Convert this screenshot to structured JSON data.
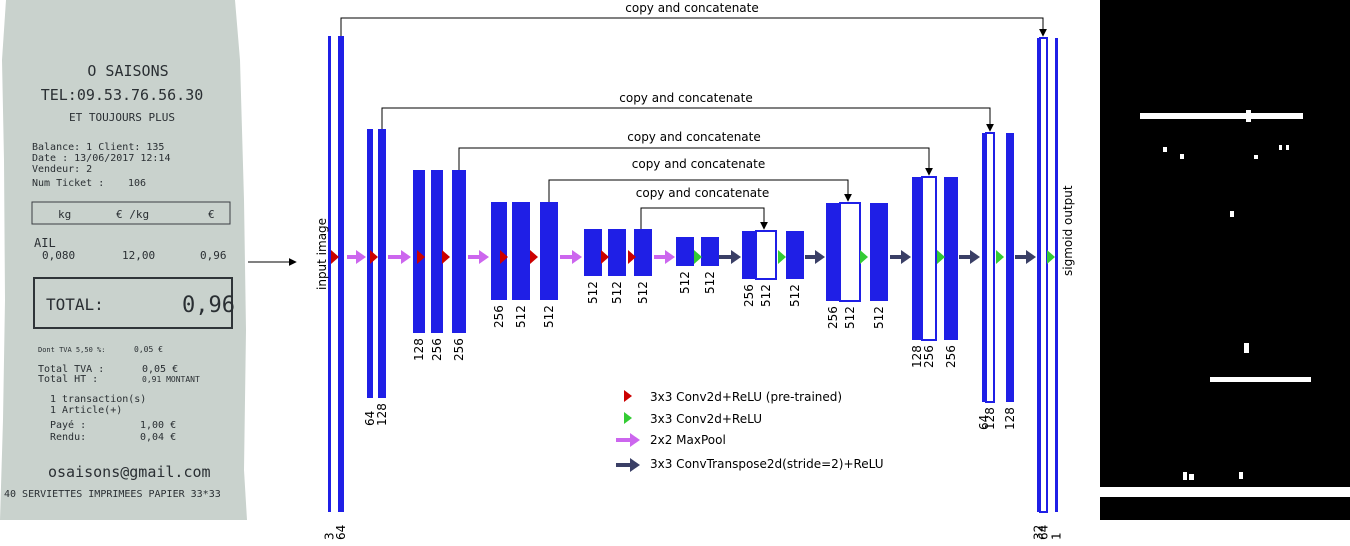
{
  "receipt": {
    "shop_name": "O SAISONS",
    "phone": "TEL:09.53.76.56.30",
    "slogan": "ET TOUJOURS PLUS",
    "balance_line": "Balance: 1   Client: 135",
    "date_line": "Date : 13/06/2017  12:14",
    "vendeur_line": "Vendeur: 2",
    "ticket_label": "Num Ticket :",
    "ticket_no": "106",
    "col_kg": "kg",
    "col_eur_kg": "€ /kg",
    "col_eur": "€",
    "item_name": "AIL",
    "item_qty": "0,080",
    "item_price": "12,00",
    "item_total": "0,96",
    "total_label": "TOTAL:",
    "total_value": "0,96",
    "tva_detail": "Dont TVA  5,50 %:",
    "tva_detail_value": "0,05 €",
    "total_tva_label": "Total TVA :",
    "total_tva_value": "0,05  €",
    "total_ht_label": "Total HT  :",
    "total_ht_value": "0,91  MONTANT",
    "transactions": "1 transaction(s)",
    "articles": "1 Article(+)",
    "paye_label": "Payé :",
    "paye_value": "1,00  €",
    "rendu_label": "Rendu:",
    "rendu_value": "0,04  €",
    "email": "osaisons@gmail.com",
    "footer": "40 SERVIETTES IMPRIMEES PAPIER 33*33"
  },
  "diagram": {
    "input_label": "input image",
    "output_label": "sigmoid output",
    "concat_label": "copy and concatenate",
    "labels": [
      "3",
      "64",
      "64",
      "128",
      "128",
      "256",
      "256",
      "256",
      "512",
      "512",
      "512",
      "512",
      "512",
      "512",
      "512",
      "256",
      "512",
      "512",
      "256",
      "512",
      "512",
      "128",
      "256",
      "256",
      "64",
      "128",
      "128",
      "32",
      "64",
      "1"
    ],
    "legend": [
      {
        "icon": "red-triangle",
        "text": "3x3 Conv2d+ReLU (pre-trained)",
        "color": "#cc0000"
      },
      {
        "icon": "green-triangle",
        "text": "3x3 Conv2d+ReLU",
        "color": "#33cc33"
      },
      {
        "icon": "purple-arrow",
        "text": "2x2 MaxPool",
        "color": "#cc66ee"
      },
      {
        "icon": "navy-arrow",
        "text": "3x3 ConvTranspose2d(stride=2)+ReLU",
        "color": "#3a3f66"
      }
    ],
    "colors": {
      "block": "#1f1fe6",
      "conv_pre": "#cc0000",
      "conv": "#33cc33",
      "pool": "#cc66ee",
      "up": "#3a3f66"
    }
  }
}
